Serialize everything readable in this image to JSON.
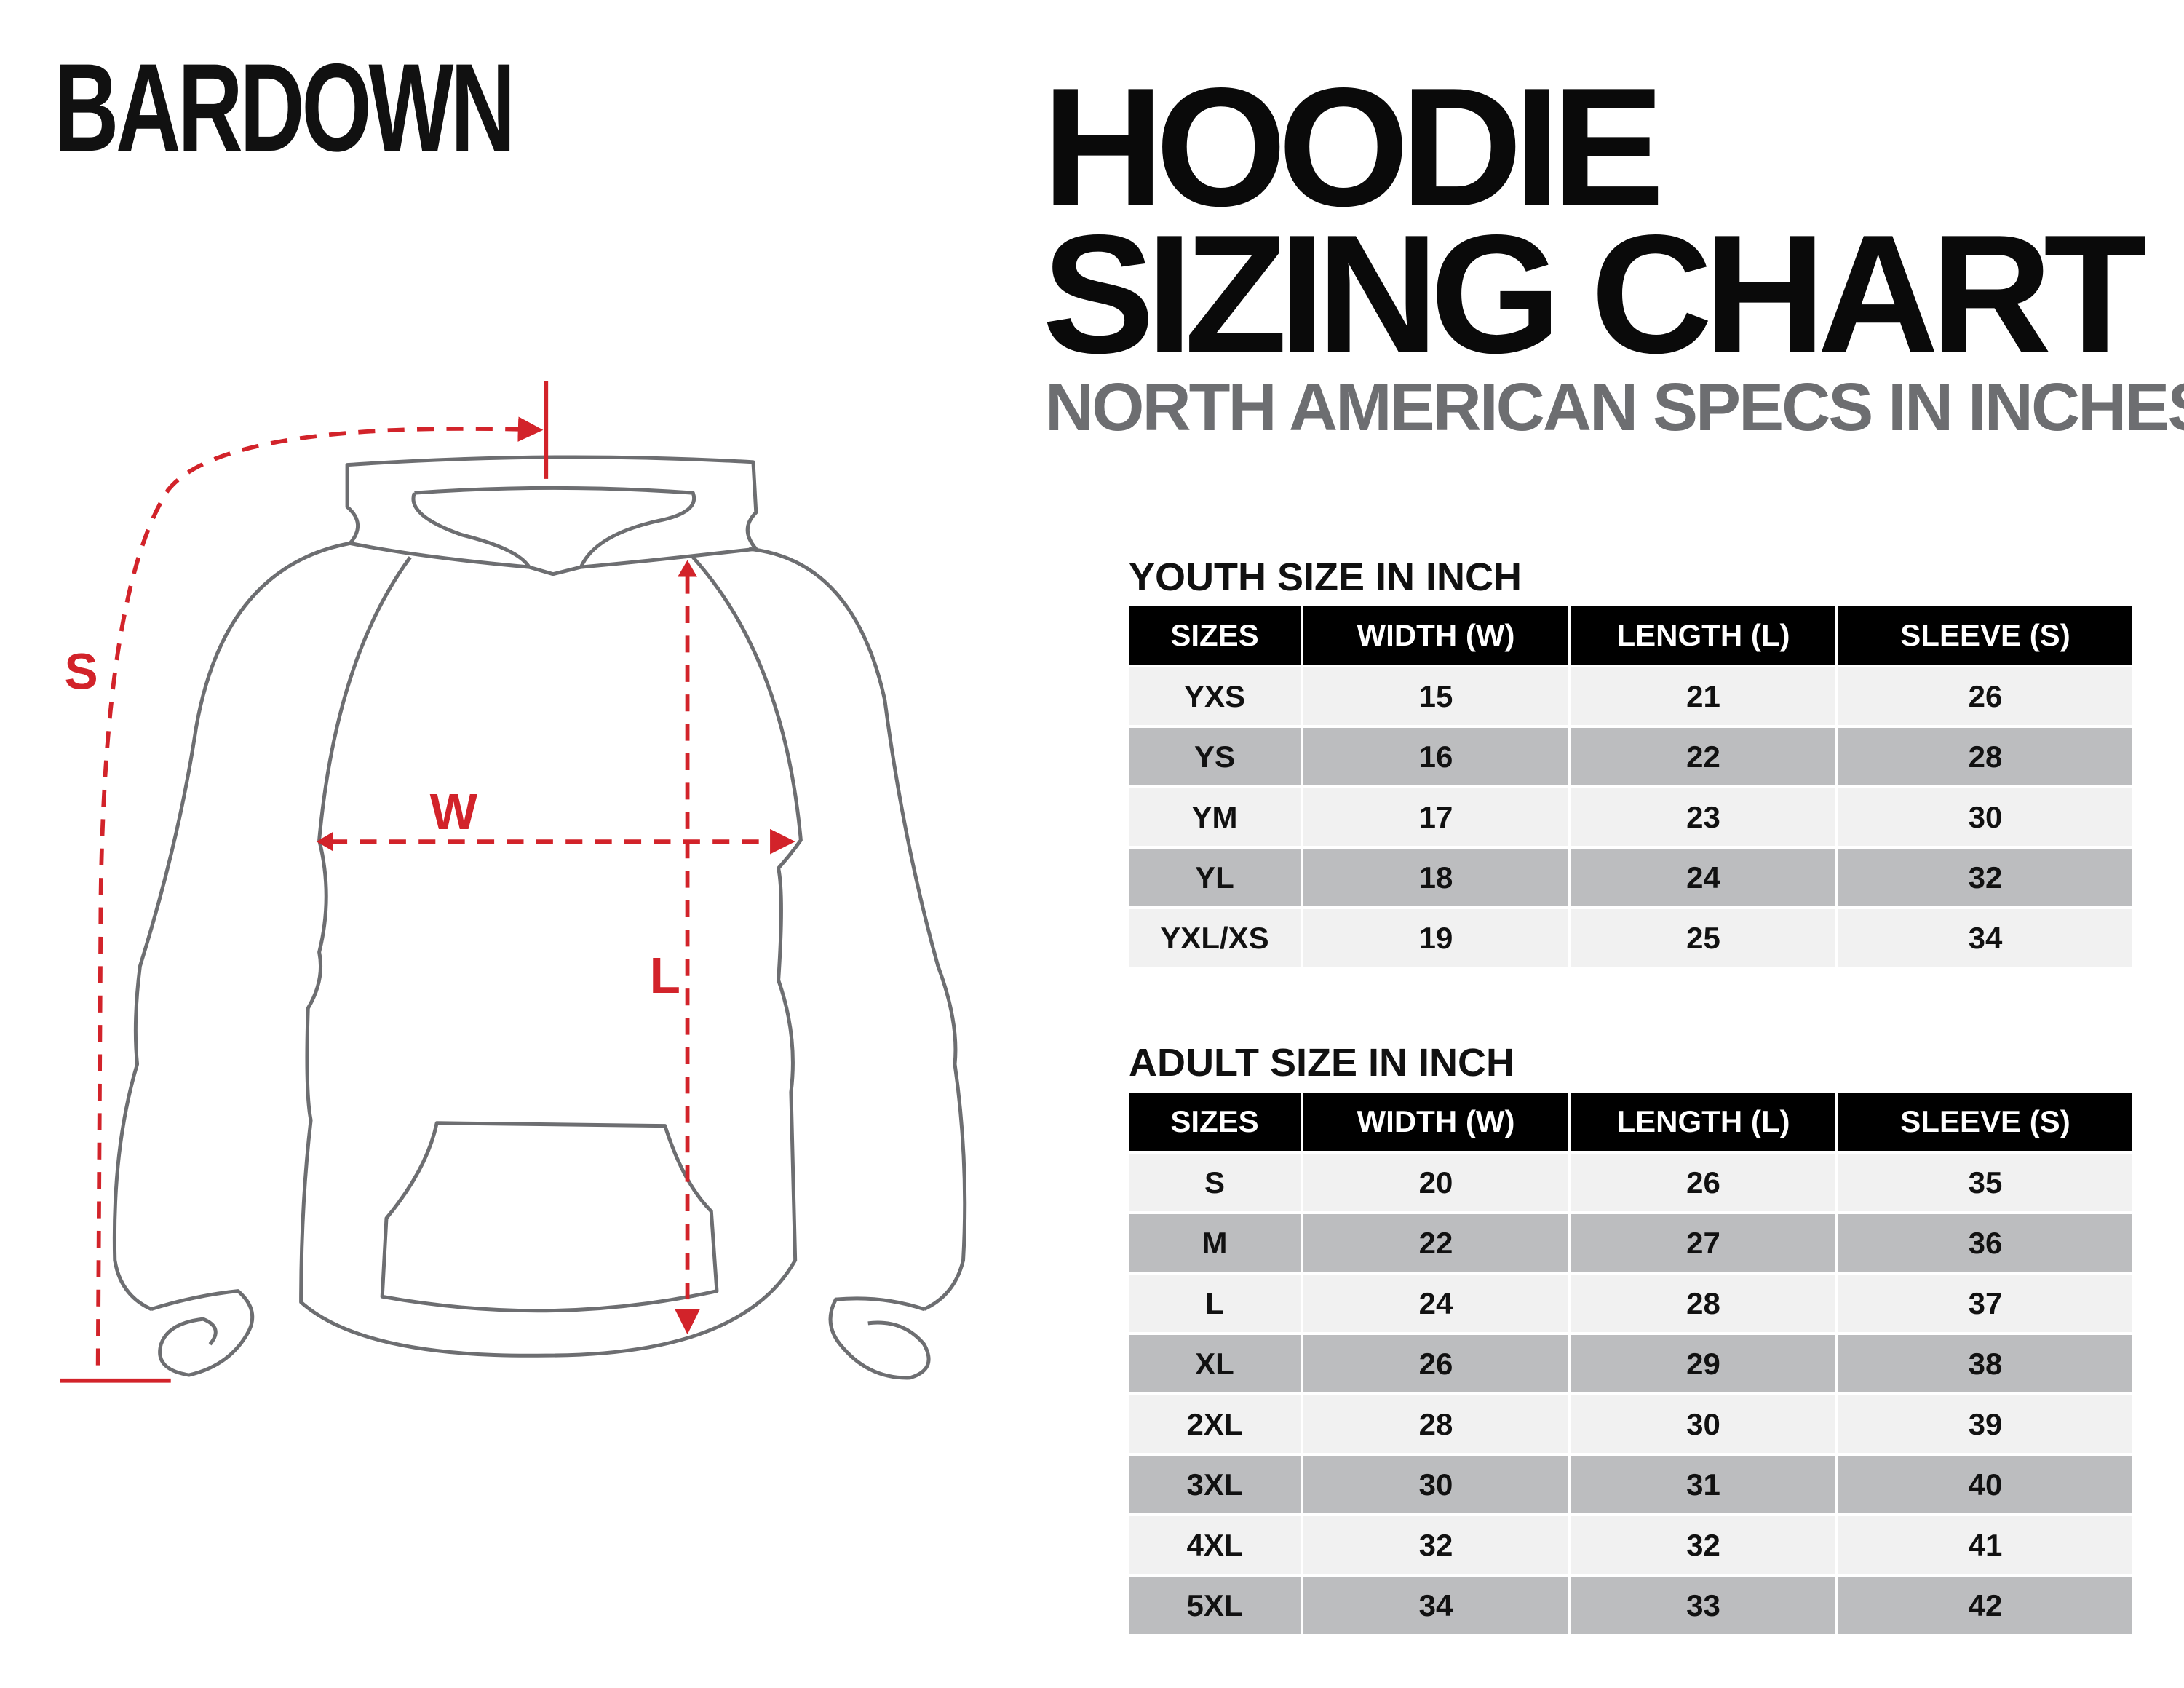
{
  "brand": {
    "logo": "BARDOWN"
  },
  "header": {
    "title_line1": "HOODIE",
    "title_line2": "SIZING CHART",
    "subtitle": "NORTH AMERICAN SPECS IN INCHES"
  },
  "diagram": {
    "labels": {
      "sleeve": "S",
      "width": "W",
      "length": "L"
    },
    "accent_color": "#d2232a",
    "outline_color": "#6d6e71"
  },
  "youth": {
    "title": "YOUTH SIZE IN INCH",
    "headers": [
      "SIZES",
      "WIDTH (W)",
      "LENGTH (L)",
      "SLEEVE (S)"
    ],
    "rows": [
      [
        "YXS",
        "15",
        "21",
        "26"
      ],
      [
        "YS",
        "16",
        "22",
        "28"
      ],
      [
        "YM",
        "17",
        "23",
        "30"
      ],
      [
        "YL",
        "18",
        "24",
        "32"
      ],
      [
        "YXL/XS",
        "19",
        "25",
        "34"
      ]
    ]
  },
  "adult": {
    "title": "ADULT SIZE IN INCH",
    "headers": [
      "SIZES",
      "WIDTH (W)",
      "LENGTH (L)",
      "SLEEVE (S)"
    ],
    "rows": [
      [
        "S",
        "20",
        "26",
        "35"
      ],
      [
        "M",
        "22",
        "27",
        "36"
      ],
      [
        "L",
        "24",
        "28",
        "37"
      ],
      [
        "XL",
        "26",
        "29",
        "38"
      ],
      [
        "2XL",
        "28",
        "30",
        "39"
      ],
      [
        "3XL",
        "30",
        "31",
        "40"
      ],
      [
        "4XL",
        "32",
        "32",
        "41"
      ],
      [
        "5XL",
        "34",
        "33",
        "42"
      ]
    ]
  }
}
